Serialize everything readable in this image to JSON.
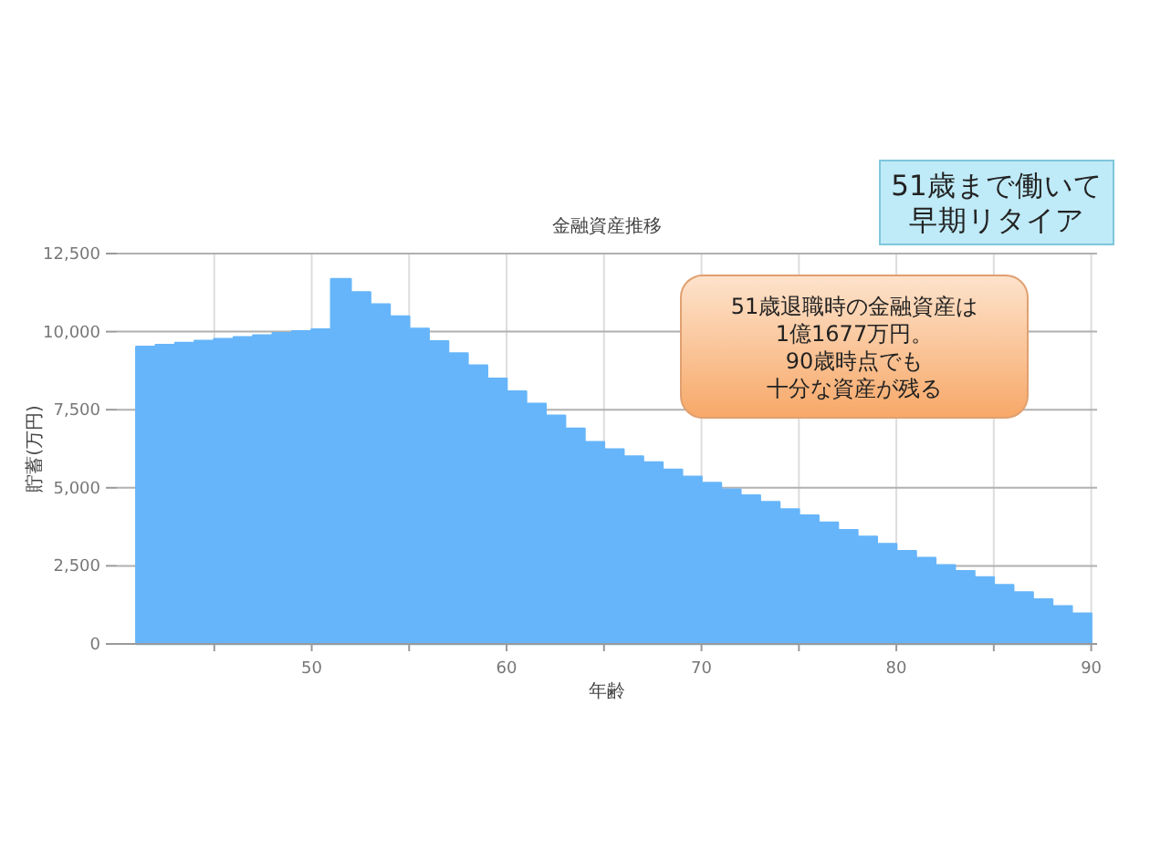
{
  "chart_data": {
    "type": "area",
    "title": "金融資産推移",
    "xlabel": "年齢",
    "ylabel": "貯蓄(万円)",
    "x": [
      41,
      42,
      43,
      44,
      45,
      46,
      47,
      48,
      49,
      50,
      51,
      52,
      53,
      54,
      55,
      56,
      57,
      58,
      59,
      60,
      61,
      62,
      63,
      64,
      65,
      66,
      67,
      68,
      69,
      70,
      71,
      72,
      73,
      74,
      75,
      76,
      77,
      78,
      79,
      80,
      81,
      82,
      83,
      84,
      85,
      86,
      87,
      88,
      89,
      90
    ],
    "values": [
      9510,
      9570,
      9640,
      9700,
      9760,
      9820,
      9880,
      9950,
      10010,
      10070,
      11680,
      11260,
      10870,
      10480,
      10090,
      9690,
      9300,
      8910,
      8490,
      8080,
      7690,
      7310,
      6890,
      6460,
      6230,
      6000,
      5810,
      5580,
      5350,
      5150,
      4940,
      4750,
      4540,
      4310,
      4110,
      3880,
      3640,
      3430,
      3200,
      2970,
      2750,
      2520,
      2330,
      2130,
      1880,
      1650,
      1420,
      1200,
      970,
      970
    ],
    "color": "#66b5fa",
    "xlim": [
      40,
      90.3
    ],
    "ylim": [
      0,
      12500
    ],
    "xticks": [
      {
        "value": 45,
        "label": null
      },
      50,
      {
        "value": 55,
        "label": null
      },
      60,
      {
        "value": 65,
        "label": null
      },
      70,
      {
        "value": 75,
        "label": null
      },
      80,
      {
        "value": 85,
        "label": null
      },
      90
    ],
    "yticks": [
      0,
      {
        "value": 2500,
        "label": "2,500"
      },
      {
        "value": 5000,
        "label": "5,000"
      },
      {
        "value": 7500,
        "label": "7,500"
      },
      {
        "value": 10000,
        "label": "10,000"
      },
      {
        "value": 12500,
        "label": "12,500"
      }
    ],
    "grid": true,
    "annotations": [
      "51歳まで働いて",
      "早期リタイア",
      "51歳退職時の金融資産は",
      "1億1677万円。",
      "90歳時点でも",
      "十分な資産が残る"
    ]
  }
}
